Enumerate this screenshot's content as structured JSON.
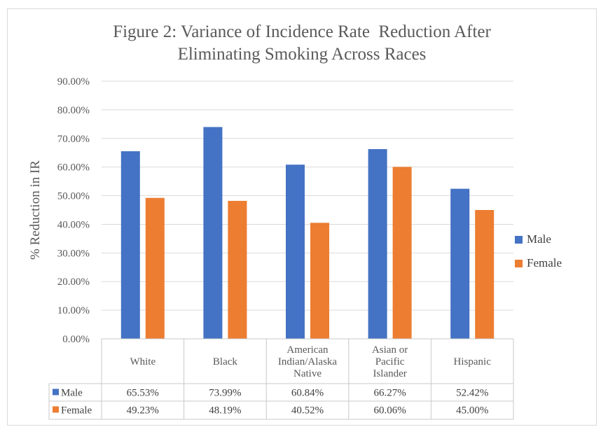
{
  "chart_data": {
    "type": "bar",
    "title": "Figure 2: Variance of Incidence Rate  Reduction After Eliminating Smoking Across Races",
    "title_lines": [
      "Figure 2: Variance of Incidence Rate  Reduction After",
      "Eliminating Smoking Across Races"
    ],
    "ylabel": "% Reduction in IR",
    "xlabel": "",
    "ylim": [
      0,
      90
    ],
    "yticks": [
      "0.00%",
      "10.00%",
      "20.00%",
      "30.00%",
      "40.00%",
      "50.00%",
      "60.00%",
      "70.00%",
      "80.00%",
      "90.00%"
    ],
    "categories": [
      [
        "White"
      ],
      [
        "Black"
      ],
      [
        "American",
        "Indian/Alaska",
        "Native"
      ],
      [
        "Asian or",
        "Pacific",
        "Islander"
      ],
      [
        "Hispanic"
      ]
    ],
    "series": [
      {
        "name": "Male",
        "color": "#4472c4",
        "values": [
          65.53,
          73.99,
          60.84,
          66.27,
          52.42
        ],
        "labels": [
          "65.53%",
          "73.99%",
          "60.84%",
          "66.27%",
          "52.42%"
        ]
      },
      {
        "name": "Female",
        "color": "#ed7d31",
        "values": [
          49.23,
          48.19,
          40.52,
          60.06,
          45.0
        ],
        "labels": [
          "49.23%",
          "48.19%",
          "40.52%",
          "60.06%",
          "45.00%"
        ]
      }
    ],
    "grid": true,
    "legend_position": "right",
    "data_table": true
  }
}
